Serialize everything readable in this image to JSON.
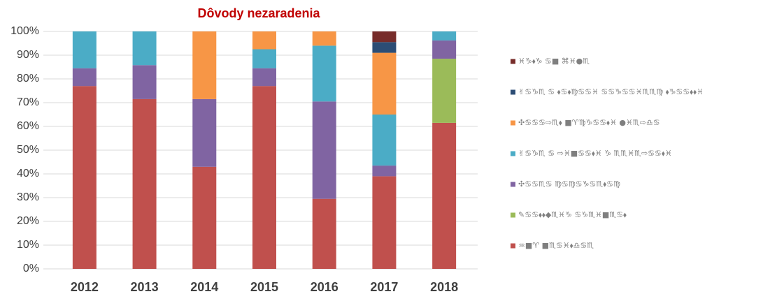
{
  "chart_data": {
    "type": "stacked_bar_100",
    "title": "Dôvody nezaradenia",
    "categories": [
      "2012",
      "2013",
      "2014",
      "2015",
      "2016",
      "2017",
      "2018"
    ],
    "series": [
      {
        "name": "♒■♈ ■♏♋♓⬧♎♋♏",
        "color": "#c0504d",
        "values": [
          77,
          71.5,
          43,
          77,
          29.5,
          39,
          61.5
        ]
      },
      {
        "name": "✎♋♋⬧⬧◆♏♓♑ ♋♑♏♓■♏♋⬧",
        "color": "#9bbb59",
        "values": [
          0,
          0,
          0,
          0,
          0,
          0,
          27
        ]
      },
      {
        "name": "✣♋♋♏♋ ♍♋♍♋♑♋♏⬧♋♍",
        "color": "#8064a2",
        "values": [
          7.5,
          14.3,
          28.5,
          7.5,
          41,
          4.5,
          7.7
        ]
      },
      {
        "name": "✌♋♑♏ ♋ ⇨♓■♋♋⬧♓ ♑ ♏♏♓♏⇨♋♋⬧♓",
        "color": "#4bacc6",
        "values": [
          15.5,
          14.2,
          0,
          8,
          23.5,
          21.5,
          3.8
        ]
      },
      {
        "name": "✣♋♋♋⇨♏⬧ ■♈♍♑♋♋⬧♓ ●♓♏⇨♎♋",
        "color": "#f79646",
        "values": [
          0,
          0,
          28.5,
          7.5,
          6,
          26,
          0
        ]
      },
      {
        "name": "✌♋♑♏ ♋ ⬧♋⬧♍♋♋♓ ♋♋♑♋♋♓♏♏♍ ⬧♑♋♋⬧⬧♓",
        "color": "#2c4d75",
        "values": [
          0,
          0,
          0,
          0,
          0,
          4.5,
          0
        ]
      },
      {
        "name": "♓♑⬧♑ ♋■ ⌘♓●♏",
        "color": "#772c2a",
        "values": [
          0,
          0,
          0,
          0,
          0,
          4.5,
          0
        ]
      }
    ],
    "ylim": [
      0,
      100
    ],
    "yticks": [
      {
        "value": 0,
        "label": "0%"
      },
      {
        "value": 10,
        "label": "10%"
      },
      {
        "value": 20,
        "label": "20%"
      },
      {
        "value": 30,
        "label": "30%"
      },
      {
        "value": 40,
        "label": "40%"
      },
      {
        "value": 50,
        "label": "50%"
      },
      {
        "value": 60,
        "label": "60%"
      },
      {
        "value": 70,
        "label": "70%"
      },
      {
        "value": 80,
        "label": "80%"
      },
      {
        "value": 90,
        "label": "90%"
      },
      {
        "value": 100,
        "label": "100%"
      }
    ],
    "grid": true,
    "legend": "right"
  }
}
